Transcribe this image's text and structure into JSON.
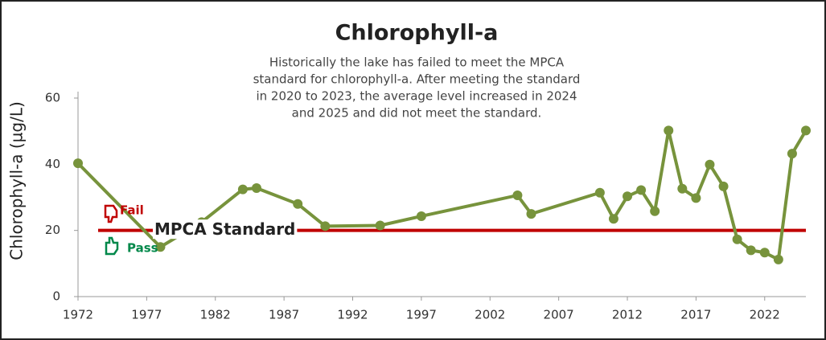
{
  "chart_data": {
    "type": "line",
    "title": "Chlorophyll-a",
    "annotation": [
      "Historically the lake has failed to meet the MPCA",
      "standard for chlorophyll-a. After meeting the standard",
      "in 2020 to 2023, the average level increased in 2024",
      "and 2025 and did not meet the standard."
    ],
    "y_label": "Chlorophyll-a  (µg/L)",
    "x": [
      1972,
      1978,
      1981,
      1984,
      1985,
      1988,
      1990,
      1994,
      1997,
      2004,
      2005,
      2010,
      2011,
      2012,
      2013,
      2014,
      2015,
      2016,
      2017,
      2018,
      2019,
      2020,
      2021,
      2022,
      2023,
      2024,
      2025
    ],
    "series": [
      {
        "color": "#77933c",
        "values": [
          40.3,
          15.0,
          22.5,
          32.4,
          32.8,
          28.0,
          21.3,
          21.5,
          24.3,
          30.6,
          25.0,
          31.4,
          23.5,
          30.3,
          32.2,
          25.8,
          50.2,
          32.6,
          29.8,
          39.9,
          33.3,
          17.3,
          14.0,
          13.3,
          11.2,
          43.2,
          50.2
        ]
      }
    ],
    "xlim": [
      1972,
      2025
    ],
    "xticks": [
      1972,
      1977,
      1982,
      1987,
      1992,
      1997,
      2002,
      2007,
      2012,
      2017,
      2022
    ],
    "ylim": [
      0,
      60
    ],
    "yticks": [
      0,
      20,
      40,
      60
    ],
    "reference_line": {
      "value": 20,
      "label": "MPCA Standard",
      "color": "#c00000"
    },
    "fail_label": {
      "text": "Fail",
      "color": "#c00000"
    },
    "pass_label": {
      "text": "Pass",
      "color": "#00884a"
    }
  }
}
